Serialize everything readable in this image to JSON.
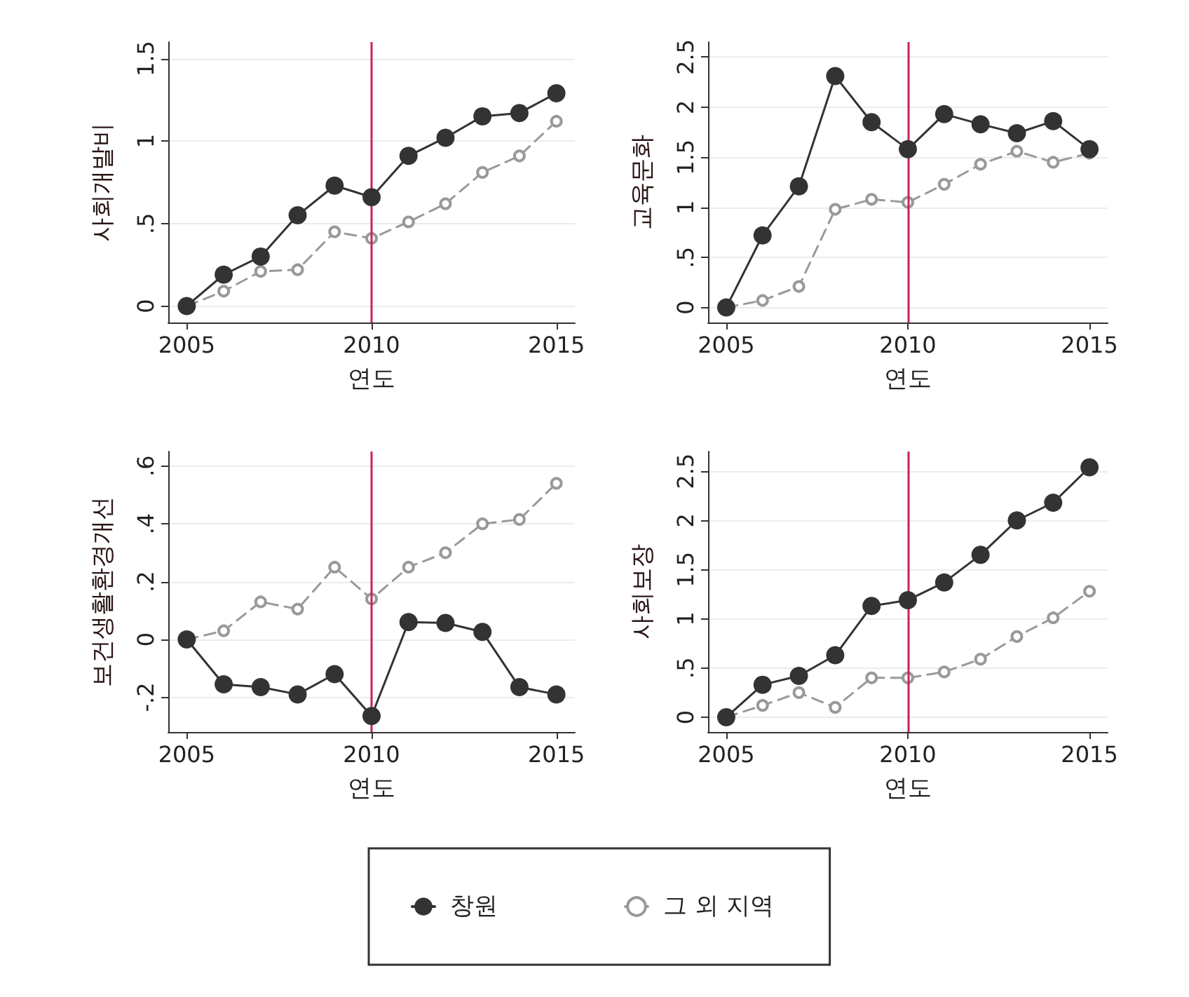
{
  "chart_data": [
    {
      "type": "line",
      "xlabel": "연도",
      "ylabel": "사회개발비",
      "x": [
        2005,
        2006,
        2007,
        2008,
        2009,
        2010,
        2011,
        2012,
        2013,
        2014,
        2015
      ],
      "xlim": [
        2004.5,
        2015.5
      ],
      "xticks": [
        2005,
        2010,
        2015
      ],
      "ylim": [
        -0.1,
        1.6
      ],
      "yticks": [
        0,
        {
          "value": 0.5,
          "label": ".5"
        },
        1,
        1.5
      ],
      "grid": "y",
      "marker": "circle",
      "legend": false,
      "ref_lines": [
        {
          "axis": "x",
          "value": 2010,
          "color": "#cc2255"
        }
      ],
      "series": [
        {
          "color": "#333333",
          "line_style": "solid",
          "values": [
            0,
            0.19,
            0.3,
            0.55,
            0.73,
            0.66,
            0.91,
            1.02,
            1.15,
            1.17,
            1.29
          ]
        },
        {
          "color": "#999999",
          "line_style": "dashed",
          "values": [
            0,
            0.09,
            0.21,
            0.22,
            0.45,
            0.41,
            0.51,
            0.62,
            0.81,
            0.91,
            1.12
          ]
        }
      ]
    },
    {
      "type": "line",
      "xlabel": "연도",
      "ylabel": "교육문화",
      "x": [
        2005,
        2006,
        2007,
        2008,
        2009,
        2010,
        2011,
        2012,
        2013,
        2014,
        2015
      ],
      "xlim": [
        2004.5,
        2015.5
      ],
      "xticks": [
        2005,
        2010,
        2015
      ],
      "ylim": [
        -0.15,
        2.65
      ],
      "yticks": [
        0,
        {
          "value": 0.5,
          "label": ".5"
        },
        1,
        1.5,
        2,
        2.5
      ],
      "grid": "y",
      "marker": "circle",
      "legend": false,
      "ref_lines": [
        {
          "axis": "x",
          "value": 2010,
          "color": "#cc2255"
        }
      ],
      "series": [
        {
          "color": "#333333",
          "line_style": "solid",
          "values": [
            0,
            0.72,
            1.21,
            2.31,
            1.85,
            1.58,
            1.93,
            1.83,
            1.74,
            1.86,
            1.58
          ]
        },
        {
          "color": "#999999",
          "line_style": "dashed",
          "values": [
            0,
            0.07,
            0.21,
            0.98,
            1.08,
            1.05,
            1.23,
            1.43,
            1.56,
            1.45,
            1.54
          ]
        }
      ]
    },
    {
      "type": "line",
      "xlabel": "연도",
      "ylabel": "보건생활환경개선",
      "x": [
        2005,
        2006,
        2007,
        2008,
        2009,
        2010,
        2011,
        2012,
        2013,
        2014,
        2015
      ],
      "xlim": [
        2004.5,
        2015.5
      ],
      "xticks": [
        2005,
        2010,
        2015
      ],
      "ylim": [
        -0.32,
        0.65
      ],
      "yticks": [
        {
          "value": -0.2,
          "label": "-.2"
        },
        0,
        {
          "value": 0.2,
          "label": ".2"
        },
        {
          "value": 0.4,
          "label": ".4"
        },
        {
          "value": 0.6,
          "label": ".6"
        }
      ],
      "grid": "y",
      "marker": "circle",
      "legend": false,
      "ref_lines": [
        {
          "axis": "x",
          "value": 2010,
          "color": "#cc2255"
        }
      ],
      "series": [
        {
          "color": "#333333",
          "line_style": "solid",
          "values": [
            0,
            -0.155,
            -0.165,
            -0.19,
            -0.12,
            -0.265,
            0.06,
            0.057,
            0.026,
            -0.165,
            -0.19
          ]
        },
        {
          "color": "#999999",
          "line_style": "dashed",
          "values": [
            0,
            0.03,
            0.13,
            0.105,
            0.25,
            0.14,
            0.25,
            0.3,
            0.4,
            0.415,
            0.54
          ]
        }
      ]
    },
    {
      "type": "line",
      "xlabel": "연도",
      "ylabel": "사회보장",
      "x": [
        2005,
        2006,
        2007,
        2008,
        2009,
        2010,
        2011,
        2012,
        2013,
        2014,
        2015
      ],
      "xlim": [
        2004.5,
        2015.5
      ],
      "xticks": [
        2005,
        2010,
        2015
      ],
      "ylim": [
        -0.15,
        2.7
      ],
      "yticks": [
        0,
        {
          "value": 0.5,
          "label": ".5"
        },
        1,
        1.5,
        2,
        2.5
      ],
      "grid": "y",
      "marker": "circle",
      "legend": "bottom",
      "ref_lines": [
        {
          "axis": "x",
          "value": 2010,
          "color": "#cc2255"
        }
      ],
      "series": [
        {
          "name": "창원",
          "color": "#333333",
          "line_style": "solid",
          "values": [
            0,
            0.33,
            0.42,
            0.63,
            1.13,
            1.19,
            1.37,
            1.65,
            2.0,
            2.18,
            2.54
          ]
        },
        {
          "name": "그 외 지역",
          "color": "#999999",
          "line_style": "dashed",
          "values": [
            0,
            0.12,
            0.25,
            0.1,
            0.4,
            0.4,
            0.46,
            0.59,
            0.82,
            1.01,
            1.28
          ]
        }
      ]
    }
  ]
}
